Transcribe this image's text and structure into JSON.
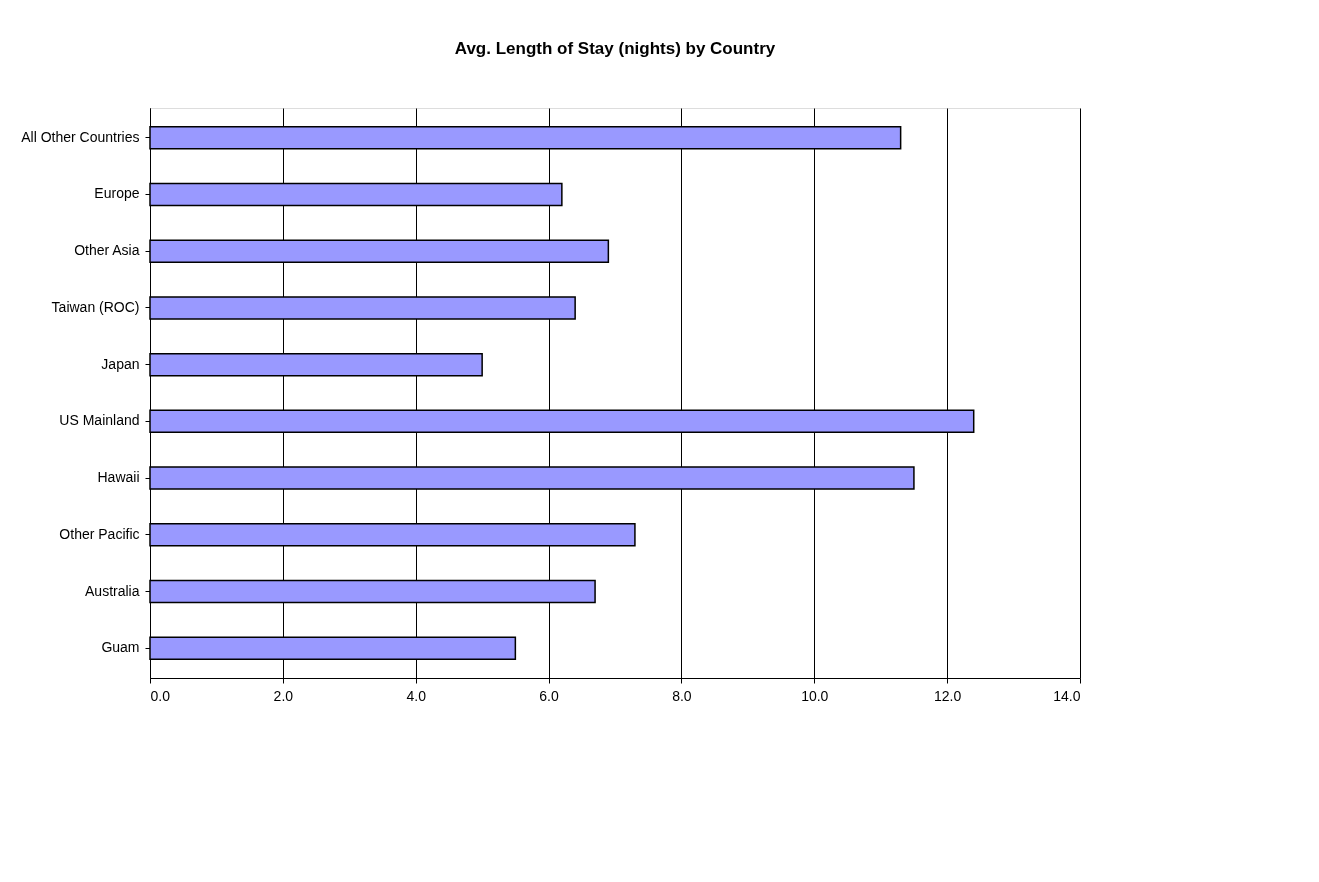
{
  "chart_data": {
    "type": "bar",
    "orientation": "horizontal",
    "title": "Avg. Length of Stay (nights) by Country",
    "categories": [
      "All Other Countries",
      "Europe",
      "Other Asia",
      "Taiwan (ROC)",
      "Japan",
      "US Mainland",
      "Hawaii",
      "Other Pacific",
      "Australia",
      "Guam"
    ],
    "values": [
      11.3,
      6.2,
      6.9,
      6.4,
      5.0,
      12.4,
      11.5,
      7.3,
      6.7,
      5.5
    ],
    "color": "#9999ff",
    "xlim": [
      0,
      14
    ],
    "xticks": [
      {
        "value": 0,
        "label": "0.0"
      },
      {
        "value": 2,
        "label": "2.0"
      },
      {
        "value": 4,
        "label": "4.0"
      },
      {
        "value": 6,
        "label": "6.0"
      },
      {
        "value": 8,
        "label": "8.0"
      },
      {
        "value": 10,
        "label": "10.0"
      },
      {
        "value": 12,
        "label": "12.0"
      },
      {
        "value": 14,
        "label": "14.0"
      }
    ],
    "grid": "x"
  }
}
